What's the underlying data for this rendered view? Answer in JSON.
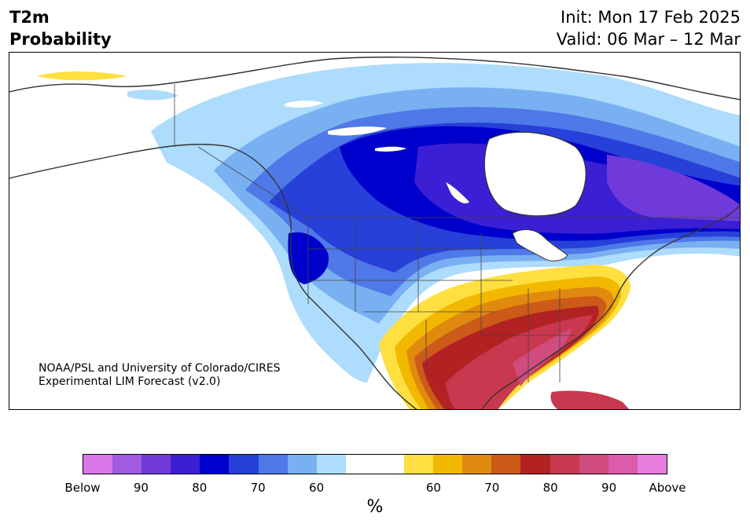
{
  "header": {
    "title_line1": "T2m",
    "title_line2": "Probability",
    "init": "Init: Mon 17 Feb 2025",
    "valid": "Valid: 06 Mar – 12 Mar"
  },
  "credit": {
    "line1": "NOAA/PSL and University of Colorado/CIRES",
    "line2": "Experimental LIM Forecast (v2.0)"
  },
  "colorbar": {
    "colors": [
      "#d977e8",
      "#a05be0",
      "#6f3ad9",
      "#3a1fd4",
      "#0000cc",
      "#2640d9",
      "#4f78e8",
      "#79b0f2",
      "#addcfc",
      "#ffffff",
      "#ffffff",
      "#ffe040",
      "#f2b800",
      "#e08a10",
      "#cc5a18",
      "#b22222",
      "#c8384e",
      "#d04c7e",
      "#db5cad",
      "#e87ee0"
    ],
    "tick_labels": [
      "Below",
      "90",
      "80",
      "70",
      "60",
      "60",
      "70",
      "80",
      "90",
      "Above"
    ],
    "unit": "%"
  },
  "legend_colors": {
    "below_strong": "#0000cc",
    "below_weak": "#addcfc",
    "above_weak": "#ffe040",
    "above_strong": "#c8384e",
    "land_outline": "#333333"
  }
}
